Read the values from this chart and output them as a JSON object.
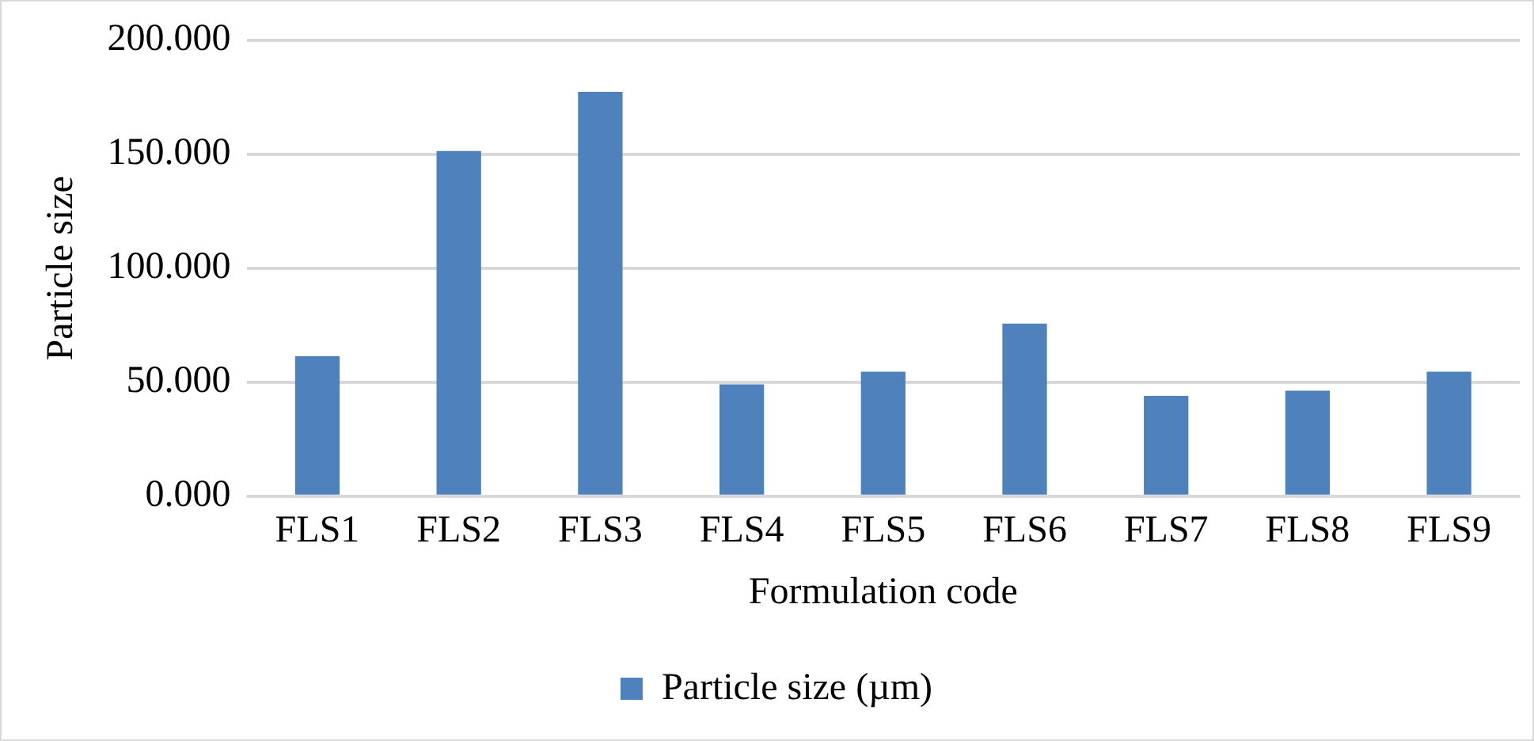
{
  "chart_data": {
    "type": "bar",
    "xlabel": "Formulation code",
    "ylabel": "Particle size",
    "categories": [
      "FLS1",
      "FLS2",
      "FLS3",
      "FLS4",
      "FLS5",
      "FLS6",
      "FLS7",
      "FLS8",
      "FLS9"
    ],
    "series": [
      {
        "name": "Particle size (µm)",
        "color": "#4f81bd",
        "values": [
          61.4,
          151.4,
          177.4,
          49.1,
          54.6,
          75.7,
          44.0,
          46.3,
          54.6
        ]
      }
    ],
    "ylim": [
      0,
      200
    ],
    "yticks": [
      {
        "value": 0,
        "label": "0.000"
      },
      {
        "value": 50,
        "label": "50.000"
      },
      {
        "value": 100,
        "label": "100.000"
      },
      {
        "value": 150,
        "label": "150.000"
      },
      {
        "value": 200,
        "label": "200.000"
      }
    ],
    "grid": "y",
    "legend": "bottom"
  }
}
